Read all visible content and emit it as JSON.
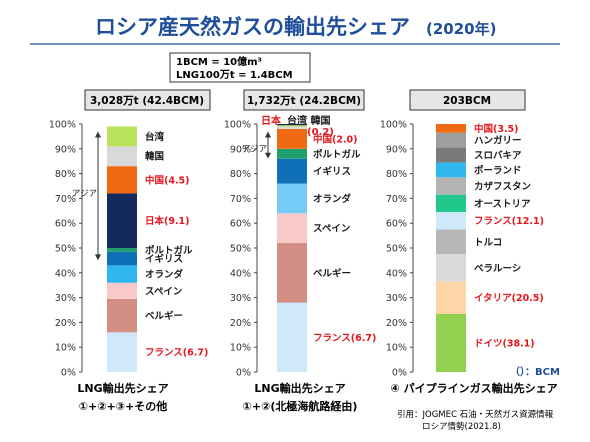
{
  "title": "ロシア産天然ガスの輸出先シェア",
  "title_year": "(2020年)",
  "note_lines": [
    "1BCM = 10億m³",
    "LNG100万t = 1.4BCM"
  ],
  "source_lines": [
    "引用：JOGMEC 石油・天然ガス資源情報",
    "ロシア情勢(2021.8)"
  ],
  "unit_note": "（）：BCM",
  "asia_label": "アジア",
  "colors": {
    "accent": "#1f4e9a",
    "ticks": "#333333",
    "label_default": "#1a1a1a",
    "label_highlight": "#e8141c"
  },
  "chart_data": [
    {
      "type": "bar",
      "stacked": true,
      "header": "3,028万t (42.4BCM)",
      "xlabel_lines": [
        "LNG輸出先シェア",
        "①+②+③+その他"
      ],
      "ylim": [
        0,
        100
      ],
      "yticks": [
        "0%",
        "10%",
        "20%",
        "30%",
        "40%",
        "50%",
        "60%",
        "70%",
        "80%",
        "90%",
        "100%"
      ],
      "asia_bracket": [
        45,
        97
      ],
      "series": [
        {
          "name": "フランス",
          "value": 6.7,
          "share": 16,
          "color": "#cfe8fa",
          "label": "フランス(6.7)",
          "highlight": true
        },
        {
          "name": "ベルギー",
          "value": null,
          "share": 13.5,
          "color": "#d38f84",
          "label": "ベルギー",
          "highlight": false
        },
        {
          "name": "スペイン",
          "value": null,
          "share": 6.5,
          "color": "#f8c9c9",
          "label": "スペイン",
          "highlight": false
        },
        {
          "name": "オランダ",
          "value": null,
          "share": 7,
          "color": "#2fb7ee",
          "label": "オランダ",
          "highlight": false
        },
        {
          "name": "イギリス",
          "value": null,
          "share": 5.5,
          "color": "#0f70b7",
          "label": "イギリス",
          "highlight": false
        },
        {
          "name": "ポルトガル",
          "value": null,
          "share": 1.5,
          "color": "#1f9e6e",
          "label": "ポルトガル",
          "highlight": false
        },
        {
          "name": "日本",
          "value": 9.1,
          "share": 22,
          "color": "#142a5e",
          "label": "日本(9.1)",
          "highlight": true
        },
        {
          "name": "中国",
          "value": 4.5,
          "share": 11,
          "color": "#f06a13",
          "label": "中国(4.5)",
          "highlight": true
        },
        {
          "name": "韓国",
          "value": null,
          "share": 8,
          "color": "#d9d9d9",
          "label": "韓国",
          "highlight": false
        },
        {
          "name": "台湾",
          "value": null,
          "share": 8,
          "color": "#b8e25a",
          "label": "台湾",
          "highlight": false
        }
      ]
    },
    {
      "type": "bar",
      "stacked": true,
      "header": "1,732万t (24.2BCM)",
      "xlabel_lines": [
        "LNG輸出先シェア",
        "①+②(北極海航路経由)"
      ],
      "ylim": [
        0,
        100
      ],
      "yticks": [
        "0%",
        "10%",
        "20%",
        "30%",
        "40%",
        "50%",
        "60%",
        "70%",
        "80%",
        "90%",
        "100%"
      ],
      "asia_bracket": [
        86,
        97
      ],
      "series": [
        {
          "name": "フランス",
          "value": 6.7,
          "share": 28,
          "color": "#cfe8fa",
          "label": "フランス(6.7)",
          "highlight": true
        },
        {
          "name": "ベルギー",
          "value": null,
          "share": 24,
          "color": "#d38f84",
          "label": "ベルギー",
          "highlight": false
        },
        {
          "name": "スペイン",
          "value": null,
          "share": 12,
          "color": "#f8c9c9",
          "label": "スペイン",
          "highlight": false
        },
        {
          "name": "オランダ",
          "value": null,
          "share": 12,
          "color": "#75cbf5",
          "label": "オランダ",
          "highlight": false
        },
        {
          "name": "イギリス",
          "value": null,
          "share": 10,
          "color": "#0f70b7",
          "label": "イギリス",
          "highlight": false
        },
        {
          "name": "ポルトガル",
          "value": null,
          "share": 4,
          "color": "#1f9e6e",
          "label": "ポルトガル",
          "highlight": false
        },
        {
          "name": "中国",
          "value": 2.0,
          "share": 8,
          "color": "#f06a13",
          "label": "中国(2.0)",
          "highlight": true
        },
        {
          "name": "韓国",
          "value": null,
          "share": 1,
          "color": "#d9d9d9",
          "label": "",
          "highlight": false
        },
        {
          "name": "台湾",
          "value": null,
          "share": 0.5,
          "color": "#b8e25a",
          "label": "",
          "highlight": false
        },
        {
          "name": "日本",
          "value": 0.2,
          "share": 0.5,
          "color": "#142a5e",
          "label": "",
          "highlight": true
        }
      ],
      "top_label_black": "台湾 韓国",
      "top_label_red": "日本",
      "top_label_red2": "(0.2)"
    },
    {
      "type": "bar",
      "stacked": true,
      "header": "203BCM",
      "xlabel_lines": [
        "④ パイプラインガス輸出先シェア"
      ],
      "ylim": [
        0,
        100
      ],
      "yticks": [
        "0%",
        "10%",
        "20%",
        "30%",
        "40%",
        "50%",
        "60%",
        "70%",
        "80%",
        "90%",
        "100%"
      ],
      "series": [
        {
          "name": "ドイツ",
          "value": 38.1,
          "share": 23.5,
          "color": "#92d050",
          "label": "ドイツ(38.1)",
          "highlight": true
        },
        {
          "name": "イタリア",
          "value": 20.5,
          "share": 13,
          "color": "#fdd5a6",
          "label": "イタリア(20.5)",
          "highlight": true
        },
        {
          "name": "ベラルーシ",
          "value": null,
          "share": 11,
          "color": "#d9d9d9",
          "label": "ベラルーシ",
          "highlight": false
        },
        {
          "name": "トルコ",
          "value": null,
          "share": 10,
          "color": "#b7b7b7",
          "label": "トルコ",
          "highlight": false
        },
        {
          "name": "フランス",
          "value": 12.1,
          "share": 7,
          "color": "#cfe8fa",
          "label": "フランス(12.1)",
          "highlight": true
        },
        {
          "name": "オーストリア",
          "value": null,
          "share": 7,
          "color": "#22c78c",
          "label": "オーストリア",
          "highlight": false
        },
        {
          "name": "カザフスタン",
          "value": null,
          "share": 7,
          "color": "#b3b3b3",
          "label": "カザフスタン",
          "highlight": false
        },
        {
          "name": "ポーランド",
          "value": null,
          "share": 6,
          "color": "#2fb7ee",
          "label": "ポーランド",
          "highlight": false
        },
        {
          "name": "スロバキア",
          "value": null,
          "share": 6,
          "color": "#7a7a7a",
          "label": "スロバキア",
          "highlight": false
        },
        {
          "name": "ハンガリー",
          "value": null,
          "share": 6,
          "color": "#9e9e9e",
          "label": "ハンガリー",
          "highlight": false
        },
        {
          "name": "中国",
          "value": 3.5,
          "share": 3.5,
          "color": "#f06a13",
          "label": "中国(3.5)",
          "highlight": true
        }
      ]
    }
  ]
}
